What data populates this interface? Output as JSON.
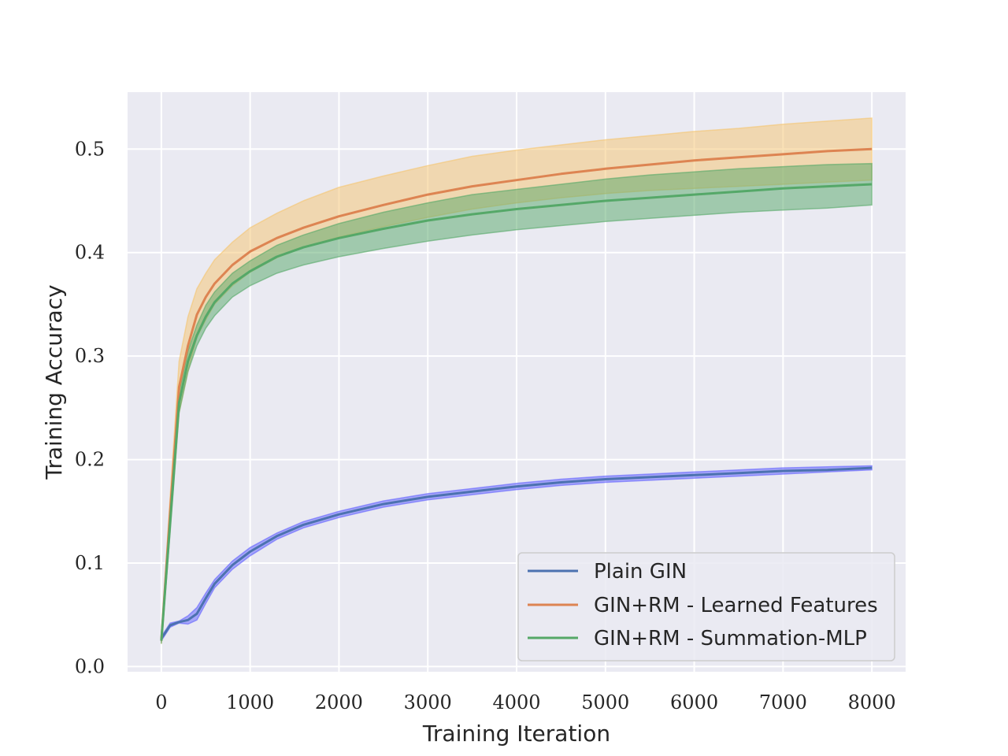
{
  "chart_data": {
    "type": "line",
    "title": "",
    "xlabel": "Training Iteration",
    "ylabel": "Training Accuracy",
    "xlim": [
      -380,
      8380
    ],
    "ylim": [
      -0.005,
      0.555
    ],
    "xticks": [
      0,
      1000,
      2000,
      3000,
      4000,
      5000,
      6000,
      7000,
      8000
    ],
    "xtick_labels": [
      "0",
      "1000",
      "2000",
      "3000",
      "4000",
      "5000",
      "6000",
      "7000",
      "8000"
    ],
    "yticks": [
      0.0,
      0.1,
      0.2,
      0.3,
      0.4,
      0.5
    ],
    "ytick_labels": [
      "0.0",
      "0.1",
      "0.2",
      "0.3",
      "0.4",
      "0.5"
    ],
    "grid": true,
    "legend_position": "lower-right",
    "x": [
      0,
      100,
      200,
      300,
      400,
      500,
      600,
      800,
      1000,
      1300,
      1600,
      2000,
      2500,
      3000,
      3500,
      4000,
      4500,
      5000,
      5500,
      6000,
      6500,
      7000,
      7500,
      8000
    ],
    "series": [
      {
        "name": "Plain GIN",
        "color": "#4c72b0",
        "band_color": "#6060ff",
        "mean": [
          0.027,
          0.04,
          0.043,
          0.045,
          0.051,
          0.066,
          0.08,
          0.098,
          0.111,
          0.126,
          0.137,
          0.147,
          0.157,
          0.164,
          0.169,
          0.174,
          0.178,
          0.181,
          0.183,
          0.185,
          0.187,
          0.189,
          0.19,
          0.192
        ],
        "upper": [
          0.029,
          0.042,
          0.044,
          0.049,
          0.057,
          0.071,
          0.084,
          0.102,
          0.115,
          0.129,
          0.14,
          0.15,
          0.16,
          0.167,
          0.172,
          0.177,
          0.181,
          0.184,
          0.186,
          0.188,
          0.19,
          0.192,
          0.193,
          0.194
        ],
        "lower": [
          0.025,
          0.038,
          0.042,
          0.041,
          0.045,
          0.061,
          0.076,
          0.094,
          0.107,
          0.123,
          0.134,
          0.144,
          0.154,
          0.161,
          0.166,
          0.171,
          0.175,
          0.178,
          0.18,
          0.182,
          0.184,
          0.186,
          0.188,
          0.19
        ]
      },
      {
        "name": "GIN+RM - Learned Features",
        "color": "#dd8452",
        "band_color": "#f5c46e",
        "mean": [
          0.025,
          0.15,
          0.27,
          0.31,
          0.34,
          0.357,
          0.37,
          0.388,
          0.401,
          0.414,
          0.424,
          0.435,
          0.446,
          0.456,
          0.464,
          0.47,
          0.476,
          0.481,
          0.485,
          0.489,
          0.492,
          0.495,
          0.498,
          0.5
        ],
        "upper": [
          0.028,
          0.165,
          0.295,
          0.338,
          0.365,
          0.38,
          0.393,
          0.41,
          0.424,
          0.438,
          0.45,
          0.463,
          0.474,
          0.484,
          0.493,
          0.499,
          0.504,
          0.509,
          0.513,
          0.517,
          0.52,
          0.524,
          0.527,
          0.53
        ],
        "lower": [
          0.022,
          0.135,
          0.245,
          0.285,
          0.318,
          0.335,
          0.35,
          0.368,
          0.381,
          0.395,
          0.405,
          0.415,
          0.425,
          0.434,
          0.442,
          0.448,
          0.453,
          0.457,
          0.46,
          0.462,
          0.464,
          0.466,
          0.468,
          0.47
        ]
      },
      {
        "name": "GIN+RM - Summation-MLP",
        "color": "#55a868",
        "band_color": "#55a868",
        "mean": [
          0.025,
          0.14,
          0.255,
          0.295,
          0.32,
          0.338,
          0.352,
          0.37,
          0.382,
          0.396,
          0.405,
          0.414,
          0.423,
          0.431,
          0.437,
          0.442,
          0.446,
          0.45,
          0.453,
          0.456,
          0.459,
          0.462,
          0.464,
          0.466
        ],
        "upper": [
          0.028,
          0.15,
          0.265,
          0.305,
          0.33,
          0.349,
          0.362,
          0.38,
          0.392,
          0.407,
          0.417,
          0.428,
          0.439,
          0.448,
          0.456,
          0.461,
          0.466,
          0.471,
          0.475,
          0.478,
          0.481,
          0.483,
          0.485,
          0.486
        ],
        "lower": [
          0.022,
          0.13,
          0.245,
          0.285,
          0.31,
          0.327,
          0.339,
          0.357,
          0.368,
          0.38,
          0.388,
          0.396,
          0.404,
          0.411,
          0.417,
          0.422,
          0.426,
          0.43,
          0.433,
          0.436,
          0.439,
          0.441,
          0.443,
          0.446
        ]
      }
    ]
  }
}
